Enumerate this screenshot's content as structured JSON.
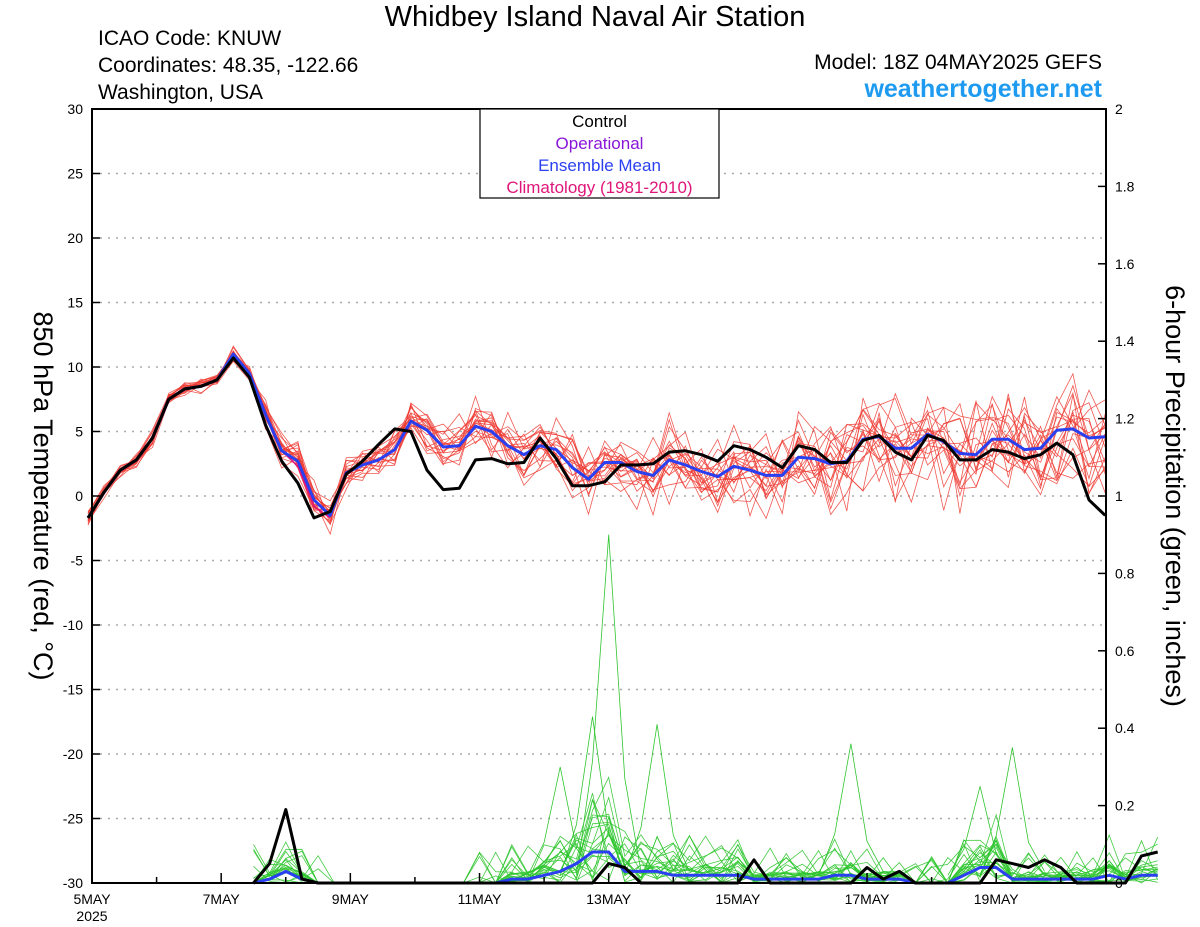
{
  "header": {
    "title": "Whidbey Island Naval Air Station",
    "icao": "ICAO Code: KNUW",
    "coordinates": "Coordinates: 48.35, -122.66",
    "region": "Washington, USA",
    "model": "Model: 18Z 04MAY2025 GEFS",
    "brand": "weathertogether.net"
  },
  "chart_data": {
    "type": "line",
    "title": "Whidbey Island Naval Air Station",
    "ylabel": "850 hPa Temperature (red, °C)",
    "y2label": "6-hour Precipitation (green, inches)",
    "ylim": [
      -30,
      30
    ],
    "y2lim": [
      0,
      2
    ],
    "xlim": [
      0,
      15.7
    ],
    "x_unit": "days since 5MAY 00Z",
    "x_ticks": [
      {
        "x": 0,
        "label": "5MAY"
      },
      {
        "x": 2,
        "label": "7MAY"
      },
      {
        "x": 4,
        "label": "9MAY"
      },
      {
        "x": 6,
        "label": "11MAY"
      },
      {
        "x": 8,
        "label": "13MAY"
      },
      {
        "x": 10,
        "label": "15MAY"
      },
      {
        "x": 12,
        "label": "17MAY"
      },
      {
        "x": 14,
        "label": "19MAY"
      }
    ],
    "x_year_label": "2025",
    "y_ticks": [
      30,
      25,
      20,
      15,
      10,
      5,
      0,
      -5,
      -10,
      -15,
      -20,
      -25,
      -30
    ],
    "y2_ticks": [
      2,
      1.8,
      1.6,
      1.4,
      1.2,
      1,
      0.8,
      0.6,
      0.4,
      0.2,
      0
    ],
    "y2_tick_labels": [
      "2",
      "1.8",
      "1.6",
      "1.4",
      "1.2",
      "1",
      "0.8",
      "0.6",
      "0.4",
      "0.2",
      "0"
    ],
    "legend": {
      "placement": "top-center",
      "entries": [
        {
          "label": "Control",
          "color": "#000000"
        },
        {
          "label": "Operational",
          "color": "#8a16d8"
        },
        {
          "label": "Ensemble Mean",
          "color": "#2a3ff0"
        },
        {
          "label": "Climatology (1981-2010)",
          "color": "#e0157a"
        }
      ]
    },
    "grid": "horizontal dotted",
    "series": [
      {
        "name": "Control",
        "axis": "temperature",
        "color": "#000000",
        "start_x": -0.0625,
        "step": 0.25,
        "values": [
          -1.7,
          0.3,
          2.0,
          2.8,
          4.5,
          7.5,
          8.3,
          8.5,
          9.0,
          10.7,
          9.2,
          5.5,
          2.7,
          1.0,
          -1.7,
          -1.2,
          1.7,
          2.7,
          4.0,
          5.2,
          5.0,
          2.0,
          0.5,
          0.6,
          2.8,
          2.9,
          2.5,
          2.6,
          4.5,
          2.9,
          0.8,
          0.8,
          1.1,
          2.4,
          2.4,
          2.5,
          3.4,
          3.5,
          3.2,
          2.7,
          3.9,
          3.6,
          3.0,
          2.2,
          3.9,
          3.6,
          2.6,
          2.6,
          4.3,
          4.7,
          3.4,
          2.8,
          4.7,
          4.3,
          2.8,
          2.8,
          3.6,
          3.4,
          2.9,
          3.2,
          4.1,
          3.2,
          -0.3,
          -1.5
        ]
      },
      {
        "name": "Ensemble Mean",
        "axis": "temperature",
        "color": "#2a3ff0",
        "start_x": -0.0625,
        "step": 0.25,
        "values": [
          -1.7,
          0.3,
          2.0,
          2.8,
          4.5,
          7.5,
          8.3,
          8.5,
          9.0,
          11.0,
          9.5,
          6.3,
          3.5,
          2.7,
          -0.3,
          -1.5,
          1.8,
          2.4,
          2.8,
          3.6,
          5.8,
          5.1,
          3.8,
          3.9,
          5.4,
          5.0,
          3.9,
          3.2,
          3.9,
          3.6,
          2.2,
          1.3,
          2.6,
          2.6,
          1.9,
          1.6,
          2.8,
          2.4,
          1.9,
          1.5,
          2.3,
          2.0,
          1.6,
          1.6,
          3.0,
          2.9,
          2.5,
          2.7,
          4.4,
          4.6,
          3.7,
          3.7,
          4.8,
          4.2,
          3.3,
          3.2,
          4.4,
          4.4,
          3.6,
          3.7,
          5.1,
          5.2,
          4.5,
          4.6
        ]
      },
      {
        "name": "Climatology (1981-2010)",
        "axis": "temperature",
        "color": "#e0157a",
        "start_x": -0.0625,
        "step": 0.25,
        "values": [
          -1.7,
          0.3,
          2.0,
          2.8,
          4.5,
          7.5,
          8.3,
          8.5,
          9.0,
          11.0,
          9.5,
          6.3,
          3.5,
          2.3,
          -0.8,
          -1.7
        ]
      },
      {
        "name": "Control",
        "axis": "precipitation",
        "color": "#000000",
        "start_x": 2.5,
        "step": 0.25,
        "values": [
          0,
          0.05,
          0.19,
          0.01,
          0,
          0,
          0,
          0,
          0,
          0,
          0,
          0,
          0,
          0,
          0,
          0,
          0,
          0,
          0,
          0,
          0,
          0,
          0.05,
          0.04,
          0,
          0,
          0,
          0,
          0,
          0,
          0,
          0.06,
          0,
          0,
          0,
          0,
          0,
          0,
          0.04,
          0.01,
          0.03,
          0,
          0,
          0,
          0,
          0,
          0.06,
          0.05,
          0.04,
          0.06,
          0.04,
          0,
          0,
          0,
          0,
          0.07,
          0.08
        ]
      },
      {
        "name": "Ensemble Mean",
        "axis": "precipitation",
        "color": "#2a3ff0",
        "start_x": 2.5,
        "step": 0.25,
        "values": [
          0,
          0.01,
          0.03,
          0.01,
          0,
          0,
          0,
          0,
          0,
          0,
          0,
          0,
          0,
          0,
          0,
          0,
          0.01,
          0.01,
          0.02,
          0.03,
          0.05,
          0.08,
          0.08,
          0.03,
          0.03,
          0.03,
          0.02,
          0.02,
          0.02,
          0.02,
          0.02,
          0.01,
          0.01,
          0.01,
          0.01,
          0.01,
          0.02,
          0.02,
          0.01,
          0.01,
          0.01,
          0,
          0,
          0,
          0.02,
          0.04,
          0.04,
          0.01,
          0.01,
          0.01,
          0.01,
          0.01,
          0.01,
          0.02,
          0.01,
          0.02,
          0.02
        ]
      }
    ]
  }
}
